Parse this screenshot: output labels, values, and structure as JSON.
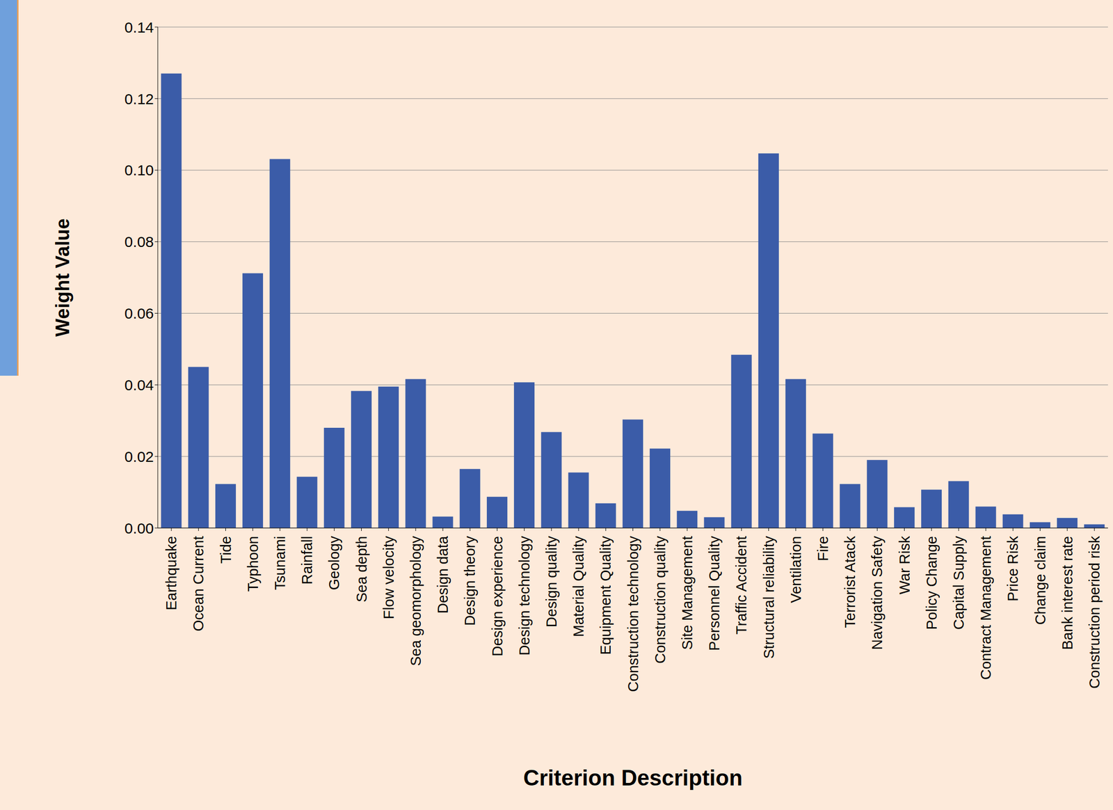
{
  "chart_data": {
    "type": "bar",
    "x_label": "Criterion Description",
    "y_label": "Weight Value",
    "categories": [
      "Earthquake",
      "Ocean Current",
      "Tide",
      "Typhoon",
      "Tsunami",
      "Rainfall",
      "Geology",
      "Sea depth",
      "Flow velocity",
      "Sea geomorphology",
      "Design data",
      "Design theory",
      "Design experience",
      "Design technology",
      "Design quality",
      "Material Quality",
      "Equipment Quality",
      "Construction technology",
      "Construction quality",
      "Site Management",
      "Personnel Quality",
      "Traffic Accident",
      "Structural reliability",
      "Ventilation",
      "Fire",
      "Terrorist Atack",
      "Navigation Safety",
      "War Risk",
      "Policy Change",
      "Capital Supply",
      "Contract Management",
      "Price Risk",
      "Change claim",
      "Bank interest rate",
      "Construction period risk"
    ],
    "values": [
      0.127,
      0.045,
      0.0123,
      0.0712,
      0.1031,
      0.0143,
      0.028,
      0.0383,
      0.0395,
      0.0416,
      0.0032,
      0.0165,
      0.0087,
      0.0407,
      0.0268,
      0.0155,
      0.0069,
      0.0303,
      0.0222,
      0.0048,
      0.003,
      0.0484,
      0.1047,
      0.0416,
      0.0264,
      0.0123,
      0.019,
      0.0058,
      0.0107,
      0.0131,
      0.006,
      0.0038,
      0.0016,
      0.0028,
      0.001
    ],
    "color": "#3b5ca8",
    "ylim": [
      0,
      0.14
    ],
    "yticks": [
      {
        "value": 0,
        "label": "0.00"
      },
      0.02,
      0.04,
      0.06,
      0.08,
      {
        "value": 0.1,
        "label": "0.10"
      },
      0.12,
      0.14
    ],
    "grid": true
  }
}
